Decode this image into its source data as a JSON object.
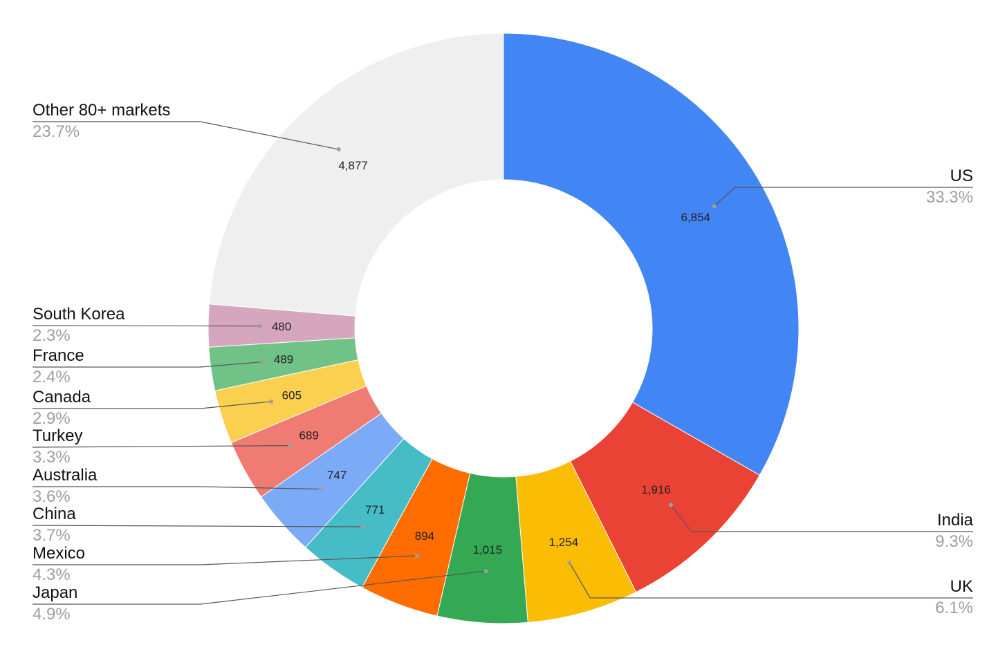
{
  "chart_data": {
    "type": "pie",
    "donut": true,
    "title": "",
    "slices": [
      {
        "name": "US",
        "value": 6854,
        "value_label": "6,854",
        "percent_label": "33.3%",
        "color": "#4285f4"
      },
      {
        "name": "India",
        "value": 1916,
        "value_label": "1,916",
        "percent_label": "9.3%",
        "color": "#ea4335"
      },
      {
        "name": "UK",
        "value": 1254,
        "value_label": "1,254",
        "percent_label": "6.1%",
        "color": "#fbbc04"
      },
      {
        "name": "Japan",
        "value": 1015,
        "value_label": "1,015",
        "percent_label": "4.9%",
        "color": "#34a853"
      },
      {
        "name": "Mexico",
        "value": 894,
        "value_label": "894",
        "percent_label": "4.3%",
        "color": "#ff6d01"
      },
      {
        "name": "China",
        "value": 771,
        "value_label": "771",
        "percent_label": "3.7%",
        "color": "#46bdc6"
      },
      {
        "name": "Australia",
        "value": 747,
        "value_label": "747",
        "percent_label": "3.6%",
        "color": "#7baaf7"
      },
      {
        "name": "Turkey",
        "value": 689,
        "value_label": "689",
        "percent_label": "3.3%",
        "color": "#f07b72"
      },
      {
        "name": "Canada",
        "value": 605,
        "value_label": "605",
        "percent_label": "2.9%",
        "color": "#fcd04f"
      },
      {
        "name": "France",
        "value": 489,
        "value_label": "489",
        "percent_label": "2.4%",
        "color": "#71c287"
      },
      {
        "name": "South Korea",
        "value": 480,
        "value_label": "480",
        "percent_label": "2.3%",
        "color": "#d5a6bd"
      },
      {
        "name": "Other 80+ markets",
        "value": 4877,
        "value_label": "4,877",
        "percent_label": "23.7%",
        "color": "#efefef"
      }
    ]
  }
}
